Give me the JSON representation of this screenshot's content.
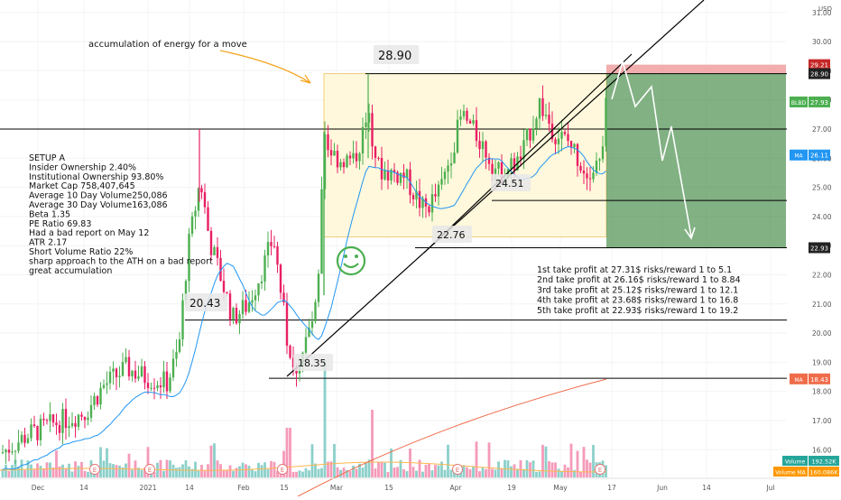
{
  "chart_data": {
    "type": "candlestick",
    "currency": "USD",
    "colors": {
      "up": "#4caf50",
      "down": "#e91e63",
      "ma_fast": "#2196f3",
      "ma_slow": "#ef6c4a",
      "target_zone": "#2e7d32",
      "stop_zone": "#ef9a9a",
      "range_box": "#fff8dc"
    },
    "y_ticks": [
      "31.00",
      "30.00",
      "29.00",
      "28.00",
      "27.00",
      "26.00",
      "25.00",
      "24.00",
      "23.00",
      "22.00",
      "21.00",
      "20.00",
      "19.00",
      "18.00",
      "17.00",
      "16.00"
    ],
    "x_ticks": [
      "Dec",
      "14",
      "2021",
      "14",
      "Feb",
      "15",
      "Mar",
      "15",
      "Apr",
      "19",
      "May",
      "17",
      "Jun",
      "14",
      "Jul"
    ],
    "price_tags": [
      {
        "label": "29.21",
        "value": 29.21,
        "color": "#c62828"
      },
      {
        "label": "28.90",
        "value": 28.9,
        "color": "#222222"
      },
      {
        "label": "BLBD",
        "value": 27.93,
        "color": "#4caf50",
        "text": "27.93"
      },
      {
        "label": "MA",
        "value": 26.11,
        "color": "#2196f3",
        "text": "26.11"
      },
      {
        "label": "22.93",
        "value": 22.93,
        "color": "#222222"
      },
      {
        "label": "MA",
        "value": 18.43,
        "color": "#ef6c4a",
        "text": "18.43"
      }
    ],
    "volume_tags": [
      {
        "label": "Volume",
        "text": "192.52K",
        "color": "#26a69a"
      },
      {
        "label": "Volume MA",
        "text": "160.086K",
        "color": "#ff9800"
      }
    ],
    "levels": [
      28.9,
      27.0,
      24.55,
      22.93,
      20.45,
      18.45
    ],
    "point_labels": [
      "28.90",
      "20.43",
      "18.35",
      "22.76",
      "24.51"
    ],
    "annotation": "accumulation of energy for a move",
    "setup_notes": [
      "SETUP A",
      "Insider Ownership 2.40%",
      "Institutional Ownership 93.80%",
      "Market Cap 758,407,645",
      "Average 10 Day Volume250,086",
      "Average 30 Day Volume163,086",
      "Beta 1.35",
      "PE Ratio 69.83",
      "Had a bad report on May 12",
      "ATR 2.17",
      "Short Volume Ratio 22%",
      "sharp approach to the ATH on a bad report",
      "great accumulation"
    ],
    "take_profits": [
      "1st take profit at 27.31$ risks/reward 1 to 5.1",
      "2nd take profit at 26.16$ risks/reward 1 to 8.84",
      "3rd take profit at 25.12$ risks/reward 1 to 12.1",
      "4th take profit at 23.68$ risks/reward 1 to 16.8",
      "5th take profit at 22.93$ risks/reward 1 to 19.2"
    ],
    "earnings_markers": [
      "E",
      "E",
      "E",
      "E",
      "E"
    ]
  }
}
